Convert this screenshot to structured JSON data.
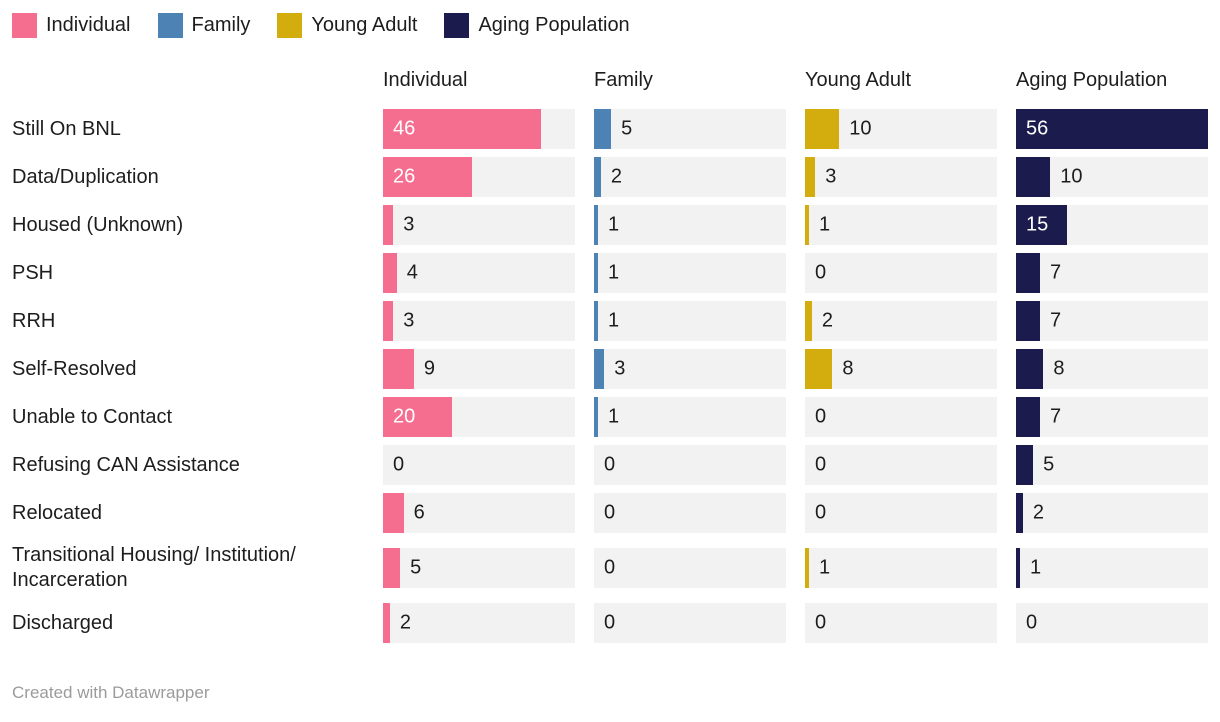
{
  "legend": {
    "items": [
      {
        "label": "Individual",
        "color": "#f56e90"
      },
      {
        "label": "Family",
        "color": "#4d82b4"
      },
      {
        "label": "Young Adult",
        "color": "#d3ac0e"
      },
      {
        "label": "Aging Population",
        "color": "#1b1b4d"
      }
    ]
  },
  "chart_data": {
    "type": "bar",
    "orientation": "horizontal",
    "layout": "small-multiples-columns",
    "title": "",
    "xlabel": "",
    "ylabel": "",
    "xlim": [
      0,
      56
    ],
    "grid": false,
    "legend_position": "top",
    "track_color": "#f2f2f2",
    "categories": [
      "Still On BNL",
      "Data/Duplication",
      "Housed (Unknown)",
      "PSH",
      "RRH",
      "Self-Resolved",
      "Unable to Contact",
      "Refusing CAN Assistance",
      "Relocated",
      "Transitional Housing/ Institution/ Incarceration",
      "Discharged"
    ],
    "series": [
      {
        "name": "Individual",
        "color": "#f56e90",
        "values": [
          46,
          26,
          3,
          4,
          3,
          9,
          20,
          0,
          6,
          5,
          2
        ]
      },
      {
        "name": "Family",
        "color": "#4d82b4",
        "values": [
          5,
          2,
          1,
          1,
          1,
          3,
          1,
          0,
          0,
          0,
          0
        ]
      },
      {
        "name": "Young Adult",
        "color": "#d3ac0e",
        "values": [
          10,
          3,
          1,
          0,
          2,
          8,
          0,
          0,
          0,
          1,
          0
        ]
      },
      {
        "name": "Aging Population",
        "color": "#1b1b4d",
        "values": [
          56,
          10,
          15,
          7,
          7,
          8,
          7,
          5,
          2,
          1,
          0
        ]
      }
    ]
  },
  "footer": {
    "credit": "Created with Datawrapper"
  }
}
